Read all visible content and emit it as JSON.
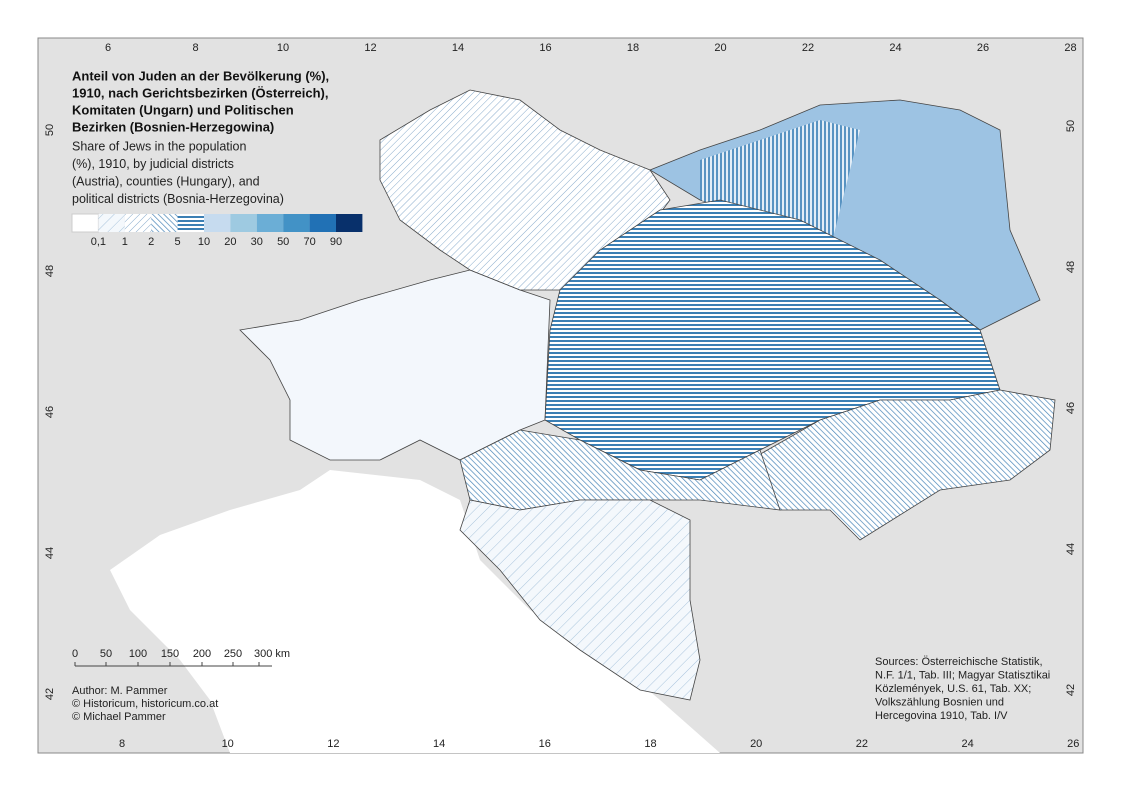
{
  "title_de": [
    "Anteil von Juden an der Bevölkerung (%),",
    "1910, nach Gerichtsbezirken (Österreich),",
    "Komitaten (Ungarn) und Politischen",
    "Bezirken (Bosnien-Herzegowina)"
  ],
  "title_en": [
    "Share of Jews in the population",
    "(%), 1910, by judicial districts",
    "(Austria), counties (Hungary), and",
    "political districts (Bosnia-Herzegovina)"
  ],
  "legend": {
    "labels": [
      "0,1",
      "1",
      "2",
      "5",
      "10",
      "20",
      "30",
      "50",
      "70",
      "90"
    ]
  },
  "scale_bar": {
    "labels": [
      "0",
      "50",
      "100",
      "150",
      "200",
      "250",
      "300 km"
    ]
  },
  "author": [
    "Author: M. Pammer",
    "© Historicum, historicum.co.at",
    "© Michael Pammer"
  ],
  "sources": [
    "Sources: Österreichische Statistik,",
    "N.F. 1/1, Tab. III; Magyar Statisztikai",
    "Közlemények, U.S. 61, Tab. XX;",
    "Volkszählung Bosnien und",
    "Hercegovina 1910, Tab. I/V"
  ],
  "graticule": {
    "top": [
      "6",
      "8",
      "10",
      "12",
      "14",
      "16",
      "18",
      "20",
      "22",
      "24",
      "26",
      "28"
    ],
    "bottom": [
      "8",
      "10",
      "12",
      "14",
      "16",
      "18",
      "20",
      "22",
      "24",
      "26"
    ],
    "left": [
      "50",
      "48",
      "46",
      "44",
      "42"
    ],
    "right": [
      "50",
      "48",
      "46",
      "44",
      "42"
    ]
  }
}
